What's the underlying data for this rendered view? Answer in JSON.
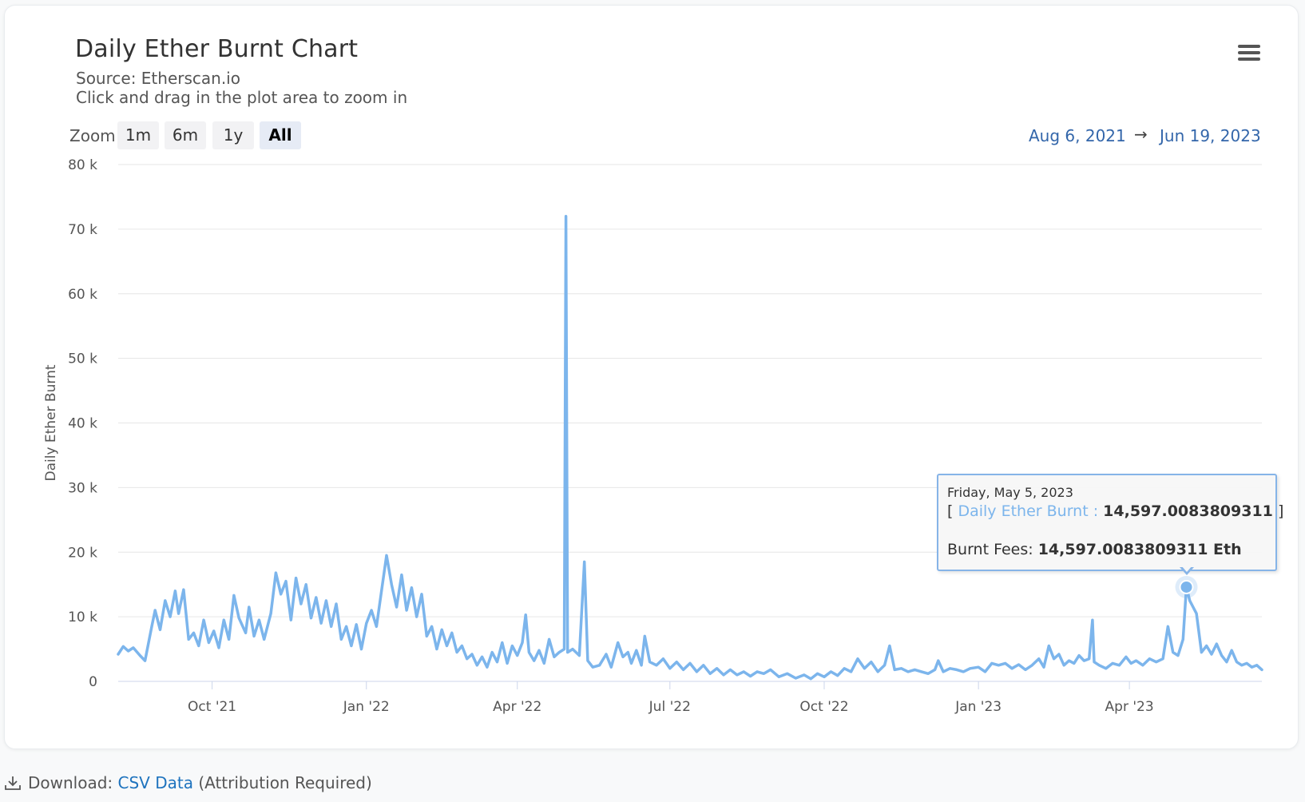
{
  "title": "Daily Ether Burnt Chart",
  "subtitle": {
    "source": "Source: Etherscan.io",
    "hint": "Click and drag in the plot area to zoom in"
  },
  "zoom": {
    "label": "Zoom",
    "buttons": [
      "1m",
      "6m",
      "1y",
      "All"
    ],
    "active": "All"
  },
  "range": {
    "from": "Aug 6, 2021",
    "arrow": "→",
    "to": "Jun 19, 2023"
  },
  "tooltip": {
    "date": "Friday, May 5, 2023",
    "open_bracket": "[",
    "series_label": "Daily Ether Burnt :",
    "value": "14,597.0083809311",
    "close_bracket": "]",
    "fees_label": "Burnt Fees:",
    "fees_value": "14,597.0083809311 Eth"
  },
  "download": {
    "label": "Download:",
    "link": "CSV Data",
    "note": "(Attribution Required)"
  },
  "icons": {
    "menu": "hamburger-menu-icon",
    "download": "download-icon"
  },
  "colors": {
    "series": "#7cb5ec",
    "title": "#333333",
    "link": "#1e73be",
    "range": "#3366aa"
  },
  "chart_data": {
    "type": "line",
    "title": "Daily Ether Burnt Chart",
    "ylabel": "Daily Ether Burnt",
    "xlabel": "",
    "ylim": [
      0,
      80000
    ],
    "y_ticks": [
      0,
      10000,
      20000,
      30000,
      40000,
      50000,
      60000,
      70000,
      80000
    ],
    "y_tick_labels": [
      "0",
      "10 k",
      "20 k",
      "30 k",
      "40 k",
      "50 k",
      "60 k",
      "70 k",
      "80 k"
    ],
    "x_range": [
      "2021-08-06",
      "2023-06-19"
    ],
    "x_ticks": [
      "2021-10-01",
      "2022-01-01",
      "2022-04-01",
      "2022-07-01",
      "2022-10-01",
      "2023-01-01",
      "2023-04-01"
    ],
    "x_tick_labels": [
      "Oct '21",
      "Jan '22",
      "Apr '22",
      "Jul '22",
      "Oct '22",
      "Jan '23",
      "Apr '23"
    ],
    "grid": true,
    "legend": "none",
    "highlighted_point": {
      "x": "2023-05-05",
      "y": 14597.0083809311
    },
    "series": [
      {
        "name": "Daily Ether Burnt",
        "points": [
          [
            "2021-08-06",
            4200
          ],
          [
            "2021-08-09",
            5400
          ],
          [
            "2021-08-12",
            4700
          ],
          [
            "2021-08-15",
            5200
          ],
          [
            "2021-08-19",
            4000
          ],
          [
            "2021-08-22",
            3200
          ],
          [
            "2021-08-26",
            8500
          ],
          [
            "2021-08-28",
            11000
          ],
          [
            "2021-08-31",
            8000
          ],
          [
            "2021-09-03",
            12500
          ],
          [
            "2021-09-06",
            10000
          ],
          [
            "2021-09-09",
            14000
          ],
          [
            "2021-09-11",
            10500
          ],
          [
            "2021-09-14",
            14200
          ],
          [
            "2021-09-17",
            6500
          ],
          [
            "2021-09-20",
            7500
          ],
          [
            "2021-09-23",
            5500
          ],
          [
            "2021-09-26",
            9500
          ],
          [
            "2021-09-29",
            6000
          ],
          [
            "2021-10-02",
            7800
          ],
          [
            "2021-10-05",
            5200
          ],
          [
            "2021-10-08",
            9500
          ],
          [
            "2021-10-11",
            6500
          ],
          [
            "2021-10-14",
            13300
          ],
          [
            "2021-10-17",
            9800
          ],
          [
            "2021-10-21",
            7500
          ],
          [
            "2021-10-23",
            11500
          ],
          [
            "2021-10-26",
            7000
          ],
          [
            "2021-10-29",
            9500
          ],
          [
            "2021-11-01",
            6500
          ],
          [
            "2021-11-05",
            10500
          ],
          [
            "2021-11-08",
            16800
          ],
          [
            "2021-11-11",
            13500
          ],
          [
            "2021-11-14",
            15500
          ],
          [
            "2021-11-17",
            9500
          ],
          [
            "2021-11-20",
            16000
          ],
          [
            "2021-11-23",
            12000
          ],
          [
            "2021-11-26",
            15000
          ],
          [
            "2021-11-29",
            9800
          ],
          [
            "2021-12-02",
            13000
          ],
          [
            "2021-12-05",
            9000
          ],
          [
            "2021-12-08",
            12500
          ],
          [
            "2021-12-11",
            8500
          ],
          [
            "2021-12-14",
            12000
          ],
          [
            "2021-12-17",
            6500
          ],
          [
            "2021-12-20",
            8500
          ],
          [
            "2021-12-23",
            5500
          ],
          [
            "2021-12-26",
            8800
          ],
          [
            "2021-12-29",
            5000
          ],
          [
            "2022-01-01",
            9000
          ],
          [
            "2022-01-04",
            11000
          ],
          [
            "2022-01-07",
            8500
          ],
          [
            "2022-01-10",
            14000
          ],
          [
            "2022-01-13",
            19500
          ],
          [
            "2022-01-16",
            15000
          ],
          [
            "2022-01-19",
            11500
          ],
          [
            "2022-01-22",
            16500
          ],
          [
            "2022-01-25",
            11000
          ],
          [
            "2022-01-28",
            14500
          ],
          [
            "2022-01-31",
            10000
          ],
          [
            "2022-02-03",
            13500
          ],
          [
            "2022-02-06",
            7000
          ],
          [
            "2022-02-09",
            8500
          ],
          [
            "2022-02-12",
            5000
          ],
          [
            "2022-02-15",
            8000
          ],
          [
            "2022-02-18",
            5500
          ],
          [
            "2022-02-21",
            7500
          ],
          [
            "2022-02-24",
            4500
          ],
          [
            "2022-02-27",
            5500
          ],
          [
            "2022-03-02",
            3500
          ],
          [
            "2022-03-05",
            4200
          ],
          [
            "2022-03-08",
            2500
          ],
          [
            "2022-03-11",
            3800
          ],
          [
            "2022-03-14",
            2200
          ],
          [
            "2022-03-17",
            4500
          ],
          [
            "2022-03-20",
            3000
          ],
          [
            "2022-03-23",
            6000
          ],
          [
            "2022-03-26",
            2800
          ],
          [
            "2022-03-29",
            5500
          ],
          [
            "2022-04-01",
            4000
          ],
          [
            "2022-04-04",
            6000
          ],
          [
            "2022-04-06",
            10300
          ],
          [
            "2022-04-08",
            4500
          ],
          [
            "2022-04-11",
            3200
          ],
          [
            "2022-04-14",
            4800
          ],
          [
            "2022-04-17",
            2800
          ],
          [
            "2022-04-20",
            6500
          ],
          [
            "2022-04-23",
            3800
          ],
          [
            "2022-04-26",
            4500
          ],
          [
            "2022-04-29",
            5000
          ],
          [
            "2022-04-30",
            72000
          ],
          [
            "2022-05-01",
            4500
          ],
          [
            "2022-05-04",
            5000
          ],
          [
            "2022-05-08",
            4000
          ],
          [
            "2022-05-11",
            18500
          ],
          [
            "2022-05-13",
            3200
          ],
          [
            "2022-05-16",
            2200
          ],
          [
            "2022-05-20",
            2500
          ],
          [
            "2022-05-24",
            4200
          ],
          [
            "2022-05-27",
            2200
          ],
          [
            "2022-05-31",
            6000
          ],
          [
            "2022-06-03",
            3800
          ],
          [
            "2022-06-06",
            4500
          ],
          [
            "2022-06-08",
            2800
          ],
          [
            "2022-06-11",
            4800
          ],
          [
            "2022-06-14",
            2500
          ],
          [
            "2022-06-16",
            7000
          ],
          [
            "2022-06-19",
            3000
          ],
          [
            "2022-06-23",
            2500
          ],
          [
            "2022-06-27",
            3500
          ],
          [
            "2022-07-01",
            2000
          ],
          [
            "2022-07-05",
            3000
          ],
          [
            "2022-07-09",
            1800
          ],
          [
            "2022-07-13",
            2800
          ],
          [
            "2022-07-17",
            1500
          ],
          [
            "2022-07-21",
            2500
          ],
          [
            "2022-07-25",
            1200
          ],
          [
            "2022-07-29",
            2000
          ],
          [
            "2022-08-02",
            1000
          ],
          [
            "2022-08-06",
            1800
          ],
          [
            "2022-08-10",
            1000
          ],
          [
            "2022-08-14",
            1500
          ],
          [
            "2022-08-18",
            800
          ],
          [
            "2022-08-22",
            1500
          ],
          [
            "2022-08-26",
            1200
          ],
          [
            "2022-08-30",
            1800
          ],
          [
            "2022-09-04",
            700
          ],
          [
            "2022-09-09",
            1200
          ],
          [
            "2022-09-14",
            500
          ],
          [
            "2022-09-19",
            1000
          ],
          [
            "2022-09-23",
            400
          ],
          [
            "2022-09-27",
            1200
          ],
          [
            "2022-10-01",
            700
          ],
          [
            "2022-10-05",
            1500
          ],
          [
            "2022-10-09",
            900
          ],
          [
            "2022-10-13",
            2000
          ],
          [
            "2022-10-17",
            1500
          ],
          [
            "2022-10-21",
            3500
          ],
          [
            "2022-10-25",
            2000
          ],
          [
            "2022-10-29",
            3000
          ],
          [
            "2022-11-02",
            1500
          ],
          [
            "2022-11-06",
            2500
          ],
          [
            "2022-11-09",
            5500
          ],
          [
            "2022-11-12",
            1800
          ],
          [
            "2022-11-16",
            2000
          ],
          [
            "2022-11-20",
            1500
          ],
          [
            "2022-11-24",
            1800
          ],
          [
            "2022-11-28",
            1500
          ],
          [
            "2022-12-02",
            1200
          ],
          [
            "2022-12-06",
            1800
          ],
          [
            "2022-12-08",
            3200
          ],
          [
            "2022-12-11",
            1500
          ],
          [
            "2022-12-15",
            2000
          ],
          [
            "2022-12-19",
            1800
          ],
          [
            "2022-12-23",
            1500
          ],
          [
            "2022-12-27",
            2000
          ],
          [
            "2023-01-01",
            2200
          ],
          [
            "2023-01-05",
            1500
          ],
          [
            "2023-01-09",
            2800
          ],
          [
            "2023-01-13",
            2500
          ],
          [
            "2023-01-17",
            2800
          ],
          [
            "2023-01-21",
            2000
          ],
          [
            "2023-01-25",
            2600
          ],
          [
            "2023-01-29",
            1800
          ],
          [
            "2023-02-02",
            2500
          ],
          [
            "2023-02-06",
            3500
          ],
          [
            "2023-02-09",
            2200
          ],
          [
            "2023-02-12",
            5500
          ],
          [
            "2023-02-15",
            3500
          ],
          [
            "2023-02-18",
            4200
          ],
          [
            "2023-02-21",
            2500
          ],
          [
            "2023-02-24",
            3200
          ],
          [
            "2023-02-27",
            2800
          ],
          [
            "2023-03-02",
            4000
          ],
          [
            "2023-03-05",
            3200
          ],
          [
            "2023-03-08",
            3500
          ],
          [
            "2023-03-10",
            9500
          ],
          [
            "2023-03-11",
            3000
          ],
          [
            "2023-03-14",
            2500
          ],
          [
            "2023-03-18",
            2000
          ],
          [
            "2023-03-22",
            2800
          ],
          [
            "2023-03-26",
            2500
          ],
          [
            "2023-03-30",
            3800
          ],
          [
            "2023-04-02",
            2800
          ],
          [
            "2023-04-05",
            3200
          ],
          [
            "2023-04-09",
            2500
          ],
          [
            "2023-04-13",
            3500
          ],
          [
            "2023-04-17",
            3000
          ],
          [
            "2023-04-21",
            3500
          ],
          [
            "2023-04-24",
            8500
          ],
          [
            "2023-04-27",
            4500
          ],
          [
            "2023-04-30",
            4000
          ],
          [
            "2023-05-03",
            6500
          ],
          [
            "2023-05-05",
            14597
          ],
          [
            "2023-05-07",
            12500
          ],
          [
            "2023-05-09",
            11500
          ],
          [
            "2023-05-11",
            10500
          ],
          [
            "2023-05-14",
            4500
          ],
          [
            "2023-05-17",
            5500
          ],
          [
            "2023-05-20",
            4200
          ],
          [
            "2023-05-23",
            5800
          ],
          [
            "2023-05-26",
            4000
          ],
          [
            "2023-05-29",
            3000
          ],
          [
            "2023-06-01",
            4800
          ],
          [
            "2023-06-04",
            3000
          ],
          [
            "2023-06-07",
            2500
          ],
          [
            "2023-06-10",
            2800
          ],
          [
            "2023-06-13",
            2200
          ],
          [
            "2023-06-16",
            2500
          ],
          [
            "2023-06-19",
            1800
          ]
        ]
      }
    ]
  }
}
